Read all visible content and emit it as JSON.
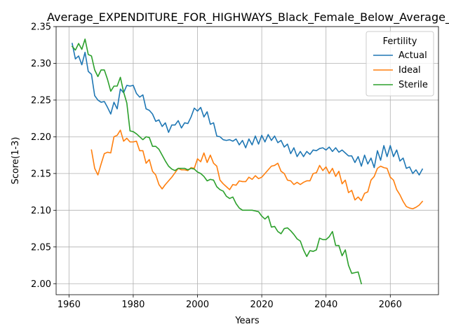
{
  "chart_data": {
    "type": "line",
    "title": "Average_EXPENDITURE_FOR_HIGHWAYS_Black_Female_Below_Average_",
    "xlabel": "Years",
    "ylabel": "Score(1-3)",
    "xlim": [
      1956,
      2075
    ],
    "ylim": [
      1.985,
      2.35
    ],
    "xticks": [
      1960,
      1980,
      2000,
      2020,
      2040,
      2060
    ],
    "yticks": [
      2.0,
      2.05,
      2.1,
      2.15,
      2.2,
      2.25,
      2.3,
      2.35
    ],
    "ytick_labels": [
      "2.00",
      "2.05",
      "2.10",
      "2.15",
      "2.20",
      "2.25",
      "2.30",
      "2.35"
    ],
    "grid": true,
    "legend": {
      "title": "Fertility",
      "placement": "top-right"
    },
    "series": [
      {
        "name": "Actual",
        "color": "#1f77b4",
        "x_start": 1961,
        "values": [
          2.327,
          2.306,
          2.31,
          2.298,
          2.315,
          2.289,
          2.285,
          2.256,
          2.25,
          2.247,
          2.248,
          2.24,
          2.231,
          2.247,
          2.238,
          2.265,
          2.26,
          2.27,
          2.269,
          2.27,
          2.259,
          2.254,
          2.257,
          2.238,
          2.236,
          2.231,
          2.221,
          2.223,
          2.214,
          2.219,
          2.206,
          2.216,
          2.216,
          2.222,
          2.212,
          2.219,
          2.218,
          2.227,
          2.239,
          2.235,
          2.24,
          2.227,
          2.234,
          2.217,
          2.219,
          2.201,
          2.2,
          2.196,
          2.195,
          2.196,
          2.194,
          2.197,
          2.189,
          2.195,
          2.185,
          2.197,
          2.189,
          2.201,
          2.19,
          2.202,
          2.193,
          2.203,
          2.195,
          2.201,
          2.192,
          2.195,
          2.186,
          2.19,
          2.177,
          2.185,
          2.173,
          2.18,
          2.173,
          2.18,
          2.176,
          2.182,
          2.181,
          2.184,
          2.185,
          2.182,
          2.186,
          2.18,
          2.185,
          2.179,
          2.182,
          2.178,
          2.174,
          2.174,
          2.165,
          2.173,
          2.16,
          2.175,
          2.163,
          2.171,
          2.158,
          2.181,
          2.168,
          2.188,
          2.173,
          2.188,
          2.173,
          2.182,
          2.167,
          2.171,
          2.157,
          2.159,
          2.15,
          2.155,
          2.148,
          2.156
        ]
      },
      {
        "name": "Ideal",
        "color": "#ff7f0e",
        "x_start": 1967,
        "values": [
          2.182,
          2.157,
          2.148,
          2.163,
          2.177,
          2.179,
          2.178,
          2.2,
          2.202,
          2.209,
          2.194,
          2.198,
          2.193,
          2.193,
          2.194,
          2.181,
          2.181,
          2.164,
          2.169,
          2.153,
          2.148,
          2.135,
          2.129,
          2.135,
          2.14,
          2.145,
          2.151,
          2.157,
          2.155,
          2.155,
          2.154,
          2.158,
          2.157,
          2.17,
          2.166,
          2.178,
          2.165,
          2.175,
          2.164,
          2.16,
          2.141,
          2.136,
          2.132,
          2.128,
          2.135,
          2.134,
          2.14,
          2.139,
          2.139,
          2.145,
          2.142,
          2.147,
          2.143,
          2.145,
          2.15,
          2.155,
          2.16,
          2.161,
          2.164,
          2.153,
          2.15,
          2.141,
          2.14,
          2.135,
          2.138,
          2.135,
          2.138,
          2.14,
          2.14,
          2.15,
          2.151,
          2.161,
          2.154,
          2.159,
          2.15,
          2.157,
          2.146,
          2.153,
          2.136,
          2.141,
          2.124,
          2.127,
          2.114,
          2.118,
          2.113,
          2.123,
          2.125,
          2.141,
          2.146,
          2.157,
          2.16,
          2.158,
          2.157,
          2.145,
          2.141,
          2.128,
          2.121,
          2.112,
          2.105,
          2.103,
          2.102,
          2.104,
          2.107,
          2.112
        ]
      },
      {
        "name": "Sterile",
        "color": "#2ca02c",
        "x_start": 1961,
        "values": [
          2.323,
          2.318,
          2.327,
          2.319,
          2.333,
          2.312,
          2.31,
          2.291,
          2.282,
          2.291,
          2.291,
          2.278,
          2.262,
          2.269,
          2.269,
          2.281,
          2.261,
          2.246,
          2.208,
          2.207,
          2.204,
          2.2,
          2.196,
          2.2,
          2.199,
          2.187,
          2.187,
          2.183,
          2.175,
          2.167,
          2.16,
          2.156,
          2.154,
          2.157,
          2.157,
          2.157,
          2.155,
          2.157,
          2.156,
          2.152,
          2.15,
          2.146,
          2.14,
          2.142,
          2.141,
          2.132,
          2.128,
          2.126,
          2.119,
          2.116,
          2.118,
          2.109,
          2.103,
          2.1,
          2.1,
          2.1,
          2.1,
          2.099,
          2.098,
          2.092,
          2.088,
          2.092,
          2.077,
          2.078,
          2.071,
          2.068,
          2.075,
          2.076,
          2.072,
          2.067,
          2.061,
          2.058,
          2.046,
          2.037,
          2.045,
          2.044,
          2.046,
          2.062,
          2.06,
          2.06,
          2.064,
          2.071,
          2.052,
          2.052,
          2.038,
          2.046,
          2.025,
          2.014,
          2.015,
          2.016,
          2.0
        ]
      }
    ]
  }
}
